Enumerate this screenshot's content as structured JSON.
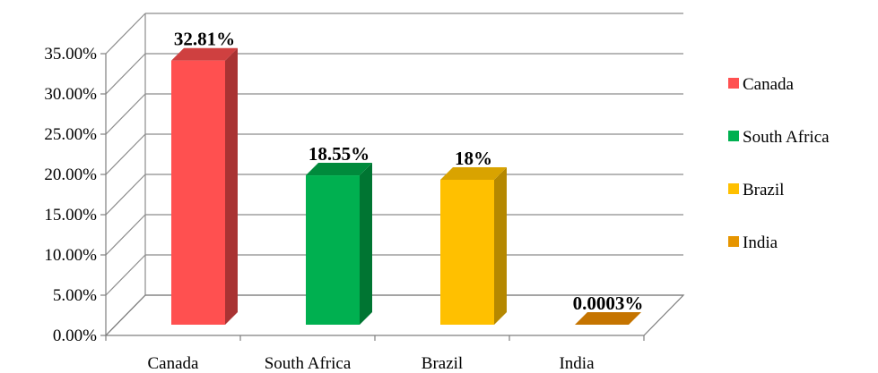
{
  "chart_data": {
    "type": "bar",
    "style": "3d-column",
    "categories": [
      "Canada",
      "South Africa",
      "Brazil",
      "India"
    ],
    "values": [
      32.81,
      18.55,
      18,
      0.0003
    ],
    "data_labels": [
      "32.81%",
      "18.55%",
      "18%",
      "0.0003%"
    ],
    "y_ticks": [
      "0.00%",
      "5.00%",
      "10.00%",
      "15.00%",
      "20.00%",
      "25.00%",
      "30.00%",
      "35.00%"
    ],
    "ylim": [
      0,
      35
    ],
    "y_step": 5,
    "grid": true,
    "legend_position": "right",
    "legend": [
      "Canada",
      "South Africa",
      "Brazil",
      "India"
    ],
    "colors": {
      "front": [
        "#FF5050",
        "#00B050",
        "#FFC000",
        "#E6870A"
      ],
      "side": [
        "#A93333",
        "#007532",
        "#B58800",
        "#A35E00"
      ],
      "top": [
        "#CF4040",
        "#008A3C",
        "#D9A300",
        "#C57400"
      ],
      "legend": [
        "#FF5050",
        "#00B050",
        "#FFC000",
        "#E69500"
      ]
    }
  }
}
